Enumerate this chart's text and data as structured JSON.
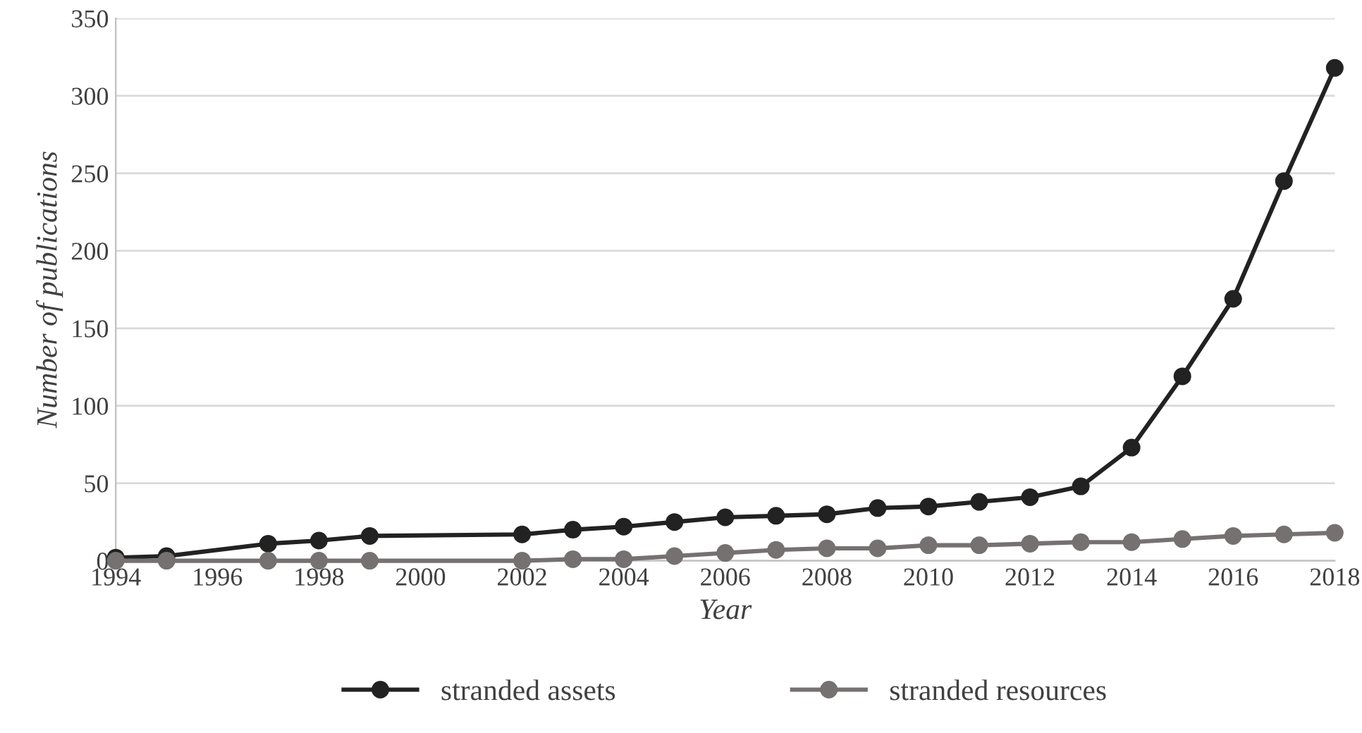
{
  "chart_data": {
    "type": "line",
    "xlabel": "Year",
    "ylabel": "Number of publications",
    "x": [
      1994,
      1995,
      1997,
      1998,
      1999,
      2002,
      2003,
      2004,
      2005,
      2006,
      2007,
      2008,
      2009,
      2010,
      2011,
      2012,
      2013,
      2014,
      2015,
      2016,
      2017,
      2018
    ],
    "series": [
      {
        "name": "stranded assets",
        "color": "#222222",
        "values": [
          2,
          3,
          11,
          13,
          16,
          17,
          20,
          22,
          25,
          28,
          29,
          30,
          34,
          35,
          38,
          41,
          48,
          73,
          119,
          169,
          245,
          318
        ]
      },
      {
        "name": "stranded resources",
        "color": "#767171",
        "values": [
          0,
          0,
          0,
          0,
          0,
          0,
          1,
          1,
          3,
          5,
          7,
          8,
          8,
          10,
          10,
          11,
          12,
          12,
          14,
          16,
          17,
          18
        ]
      }
    ],
    "xlim": [
      1994,
      2018
    ],
    "xticks": [
      1994,
      1996,
      1998,
      2000,
      2002,
      2004,
      2006,
      2008,
      2010,
      2012,
      2014,
      2016,
      2018
    ],
    "ylim": [
      0,
      350
    ],
    "yticks": [
      0,
      50,
      100,
      150,
      200,
      250,
      300,
      350
    ],
    "grid": "y",
    "legend": "bottom",
    "marker": "circle",
    "line_style": "solid"
  }
}
